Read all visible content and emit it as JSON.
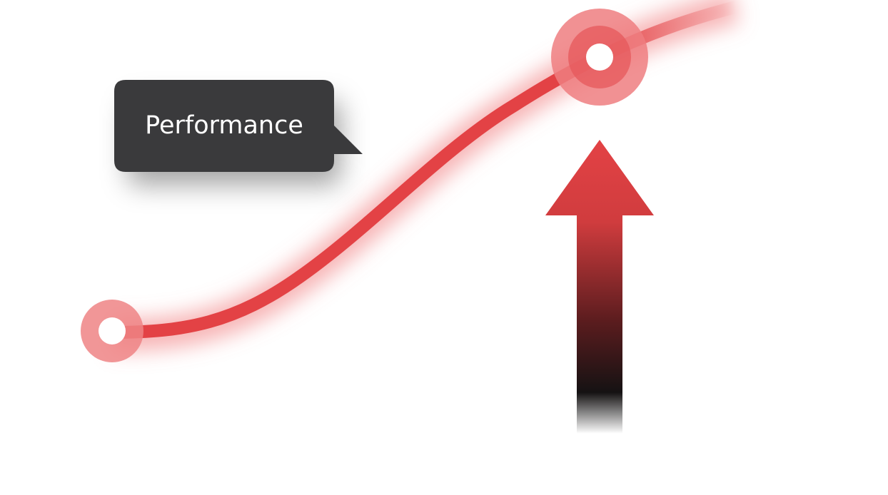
{
  "callout": {
    "text": "Performance"
  },
  "colors": {
    "curve": "#e34245",
    "curve_glow": "#f28c8d",
    "marker_ring": "#ef8485",
    "marker_center": "#ffffff",
    "callout_bg": "#3a3a3c",
    "callout_text": "#ffffff",
    "arrow_top": "#e34245",
    "arrow_bottom": "#111111"
  },
  "icons": {
    "trend": "rising-curve",
    "indicator": "up-arrow"
  }
}
